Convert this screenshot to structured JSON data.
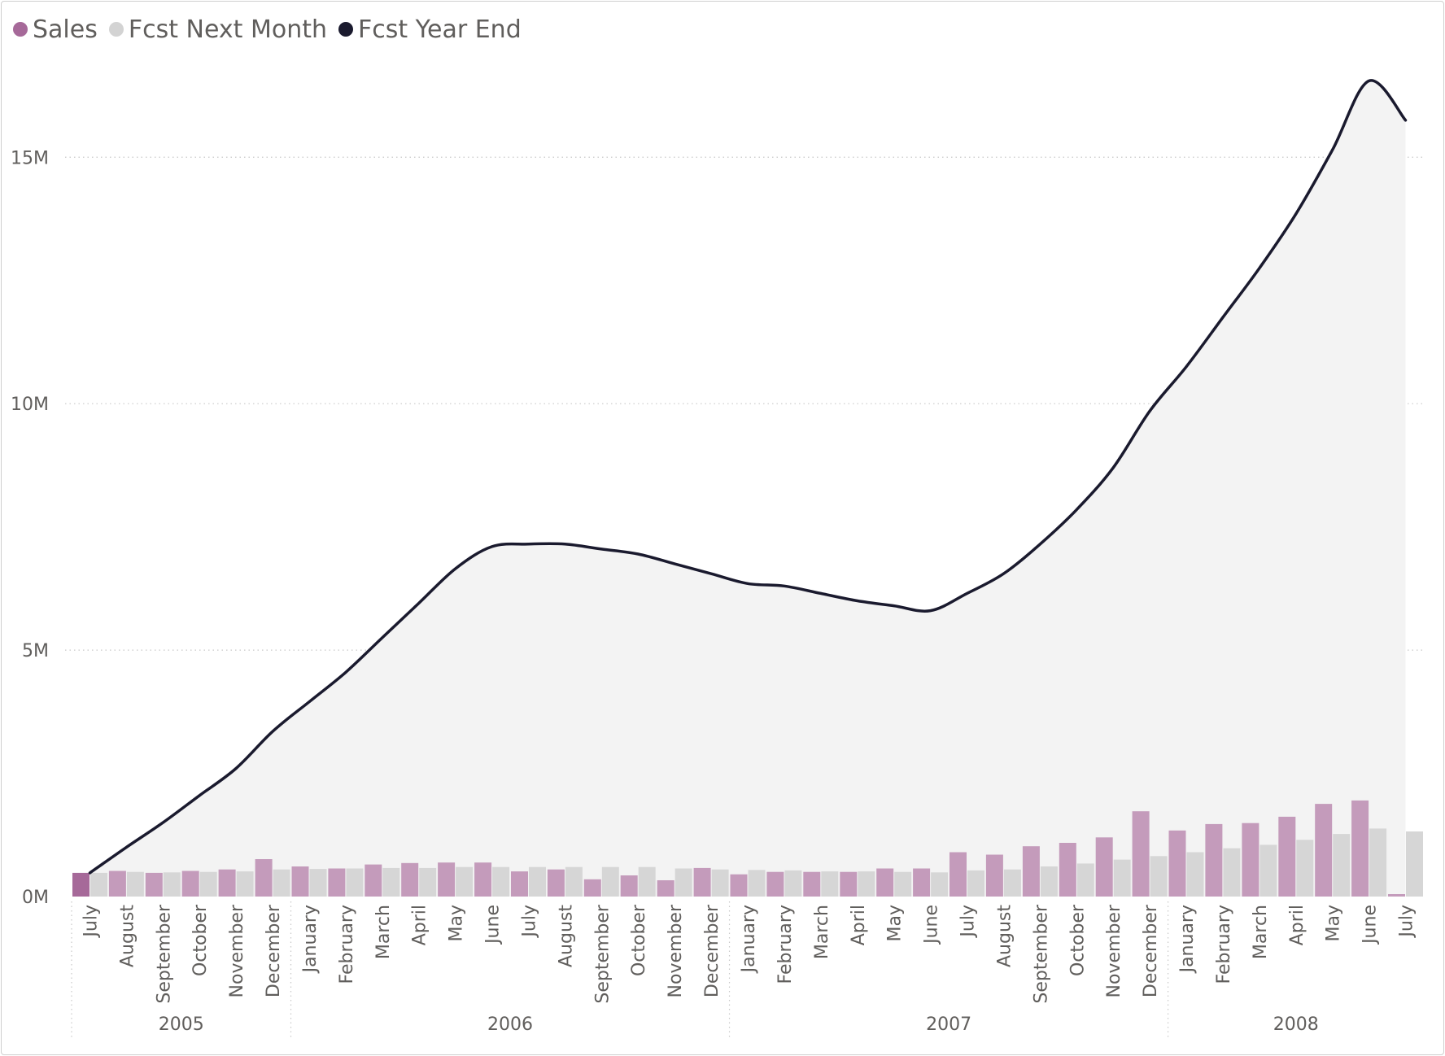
{
  "legend": {
    "items": [
      {
        "label": "Sales",
        "color": "#a66999"
      },
      {
        "label": "Fcst Next Month",
        "color": "#d3d3d3"
      },
      {
        "label": "Fcst Year End",
        "color": "#1a1a2e"
      }
    ]
  },
  "chart_data": {
    "type": "bar",
    "categories": [
      "July",
      "August",
      "September",
      "October",
      "November",
      "December",
      "January",
      "February",
      "March",
      "April",
      "May",
      "June",
      "July",
      "August",
      "September",
      "October",
      "November",
      "December",
      "January",
      "February",
      "March",
      "April",
      "May",
      "June",
      "July",
      "August",
      "September",
      "October",
      "November",
      "December",
      "January",
      "February",
      "March",
      "April",
      "May",
      "June",
      "July"
    ],
    "year_groups": [
      {
        "label": "2005",
        "start": 0,
        "count": 6
      },
      {
        "label": "2006",
        "start": 6,
        "count": 12
      },
      {
        "label": "2007",
        "start": 18,
        "count": 12
      },
      {
        "label": "2008",
        "start": 30,
        "count": 7
      }
    ],
    "series": [
      {
        "name": "Sales",
        "type": "bar",
        "color": "#c49bbb",
        "highlight_color": "#a66999",
        "values": [
          0.48,
          0.52,
          0.48,
          0.52,
          0.55,
          0.76,
          0.61,
          0.57,
          0.65,
          0.68,
          0.69,
          0.69,
          0.51,
          0.55,
          0.35,
          0.43,
          0.33,
          0.58,
          0.45,
          0.5,
          0.5,
          0.5,
          0.57,
          0.57,
          0.9,
          0.85,
          1.02,
          1.09,
          1.2,
          1.73,
          1.34,
          1.47,
          1.49,
          1.62,
          1.88,
          1.95,
          0.05
        ]
      },
      {
        "name": "Fcst Next Month",
        "type": "bar",
        "color": "#d6d6d6",
        "values": [
          0.48,
          0.5,
          0.49,
          0.5,
          0.51,
          0.55,
          0.56,
          0.57,
          0.58,
          0.58,
          0.6,
          0.6,
          0.6,
          0.6,
          0.6,
          0.6,
          0.57,
          0.55,
          0.54,
          0.53,
          0.51,
          0.51,
          0.5,
          0.49,
          0.53,
          0.55,
          0.61,
          0.67,
          0.75,
          0.82,
          0.9,
          0.98,
          1.05,
          1.15,
          1.27,
          1.38,
          1.32
        ]
      },
      {
        "name": "Fcst Year End",
        "type": "area",
        "color": "#1a1a2e",
        "fill": "#f3f3f3",
        "values": [
          0.48,
          1.0,
          1.5,
          2.05,
          2.6,
          3.35,
          3.95,
          4.55,
          5.25,
          5.95,
          6.65,
          7.1,
          7.15,
          7.15,
          7.05,
          6.95,
          6.75,
          6.55,
          6.35,
          6.3,
          6.15,
          6.0,
          5.9,
          5.8,
          6.15,
          6.55,
          7.15,
          7.85,
          8.7,
          9.85,
          10.75,
          11.75,
          12.75,
          13.85,
          15.15,
          16.55,
          15.75
        ]
      }
    ],
    "y_ticks": [
      {
        "value": 0,
        "label": "0M"
      },
      {
        "value": 5,
        "label": "5M"
      },
      {
        "value": 10,
        "label": "10M"
      },
      {
        "value": 15,
        "label": "15M"
      }
    ],
    "ylim": [
      0,
      17.2
    ],
    "y_unit": "millions",
    "grid": "horizontal-dotted",
    "legend_position": "top-left"
  }
}
